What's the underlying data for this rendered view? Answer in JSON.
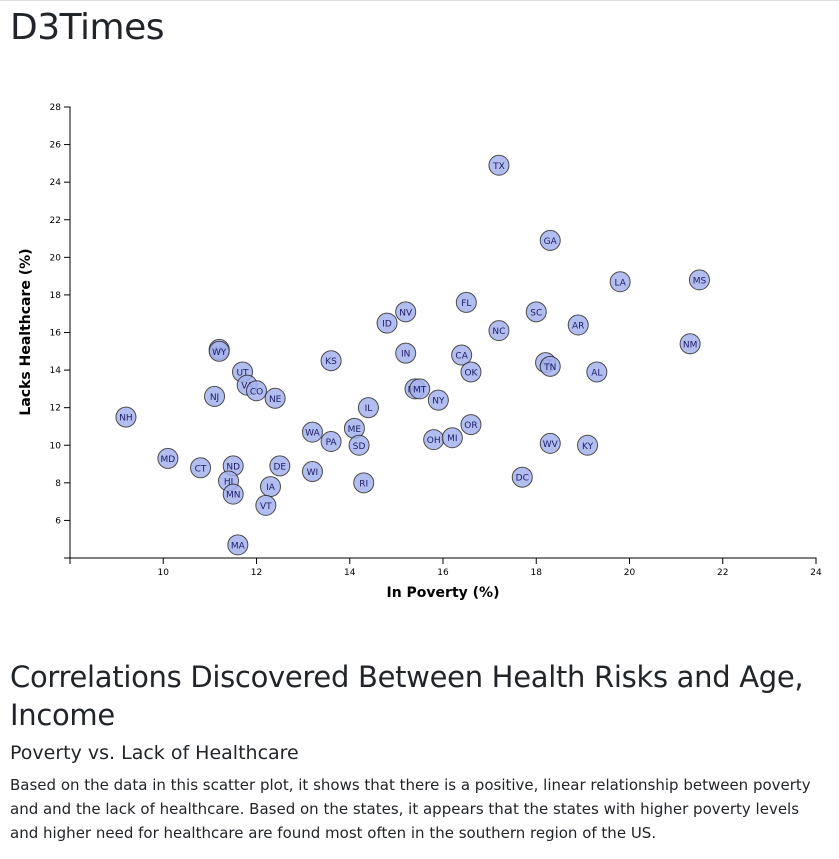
{
  "header": {
    "title": "D3Times"
  },
  "chart_data": {
    "type": "scatter",
    "xlabel": "In Poverty (%)",
    "ylabel": "Lacks Healthcare (%)",
    "xlim": [
      8,
      24
    ],
    "ylim": [
      4,
      28
    ],
    "xticks": [
      10,
      12,
      14,
      16,
      18,
      20,
      22,
      24
    ],
    "yticks": [
      6,
      8,
      10,
      12,
      14,
      16,
      18,
      20,
      22,
      24,
      26,
      28
    ],
    "points": [
      {
        "abbr": "TX",
        "x": 17.2,
        "y": 24.9
      },
      {
        "abbr": "GA",
        "x": 18.3,
        "y": 20.9
      },
      {
        "abbr": "LA",
        "x": 19.8,
        "y": 18.7
      },
      {
        "abbr": "MS",
        "x": 21.5,
        "y": 18.8
      },
      {
        "abbr": "FL",
        "x": 16.5,
        "y": 17.6
      },
      {
        "abbr": "SC",
        "x": 18.0,
        "y": 17.1
      },
      {
        "abbr": "NV",
        "x": 15.2,
        "y": 17.1
      },
      {
        "abbr": "ID",
        "x": 14.8,
        "y": 16.5
      },
      {
        "abbr": "AR",
        "x": 18.9,
        "y": 16.4
      },
      {
        "abbr": "NC",
        "x": 17.2,
        "y": 16.1
      },
      {
        "abbr": "NM",
        "x": 21.3,
        "y": 15.4
      },
      {
        "abbr": "AK",
        "x": 11.2,
        "y": 15.1
      },
      {
        "abbr": "WY",
        "x": 11.2,
        "y": 15.0
      },
      {
        "abbr": "IN",
        "x": 15.2,
        "y": 14.9
      },
      {
        "abbr": "CA",
        "x": 16.4,
        "y": 14.8
      },
      {
        "abbr": "KS",
        "x": 13.6,
        "y": 14.5
      },
      {
        "abbr": "AZ",
        "x": 18.2,
        "y": 14.4
      },
      {
        "abbr": "TN",
        "x": 18.3,
        "y": 14.2
      },
      {
        "abbr": "UT",
        "x": 11.7,
        "y": 13.9
      },
      {
        "abbr": "OK",
        "x": 16.6,
        "y": 13.9
      },
      {
        "abbr": "AL",
        "x": 19.3,
        "y": 13.9
      },
      {
        "abbr": "VA",
        "x": 11.8,
        "y": 13.2
      },
      {
        "abbr": "CO",
        "x": 12.0,
        "y": 12.9
      },
      {
        "abbr": "MO",
        "x": 15.4,
        "y": 13.0
      },
      {
        "abbr": "MT",
        "x": 15.5,
        "y": 13.0
      },
      {
        "abbr": "NJ",
        "x": 11.1,
        "y": 12.6
      },
      {
        "abbr": "NE",
        "x": 12.4,
        "y": 12.5
      },
      {
        "abbr": "NY",
        "x": 15.9,
        "y": 12.4
      },
      {
        "abbr": "IL",
        "x": 14.4,
        "y": 12.0
      },
      {
        "abbr": "NH",
        "x": 9.2,
        "y": 11.5
      },
      {
        "abbr": "OR",
        "x": 16.6,
        "y": 11.1
      },
      {
        "abbr": "ME",
        "x": 14.1,
        "y": 10.9
      },
      {
        "abbr": "WA",
        "x": 13.2,
        "y": 10.7
      },
      {
        "abbr": "OH",
        "x": 15.8,
        "y": 10.3
      },
      {
        "abbr": "MI",
        "x": 16.2,
        "y": 10.4
      },
      {
        "abbr": "PA",
        "x": 13.6,
        "y": 10.2
      },
      {
        "abbr": "WV",
        "x": 18.3,
        "y": 10.1
      },
      {
        "abbr": "KY",
        "x": 19.1,
        "y": 10.0
      },
      {
        "abbr": "SD",
        "x": 14.2,
        "y": 10.0
      },
      {
        "abbr": "MD",
        "x": 10.1,
        "y": 9.3
      },
      {
        "abbr": "CT",
        "x": 10.8,
        "y": 8.8
      },
      {
        "abbr": "ND",
        "x": 11.5,
        "y": 8.9
      },
      {
        "abbr": "DE",
        "x": 12.5,
        "y": 8.9
      },
      {
        "abbr": "WI",
        "x": 13.2,
        "y": 8.6
      },
      {
        "abbr": "DC",
        "x": 17.7,
        "y": 8.3
      },
      {
        "abbr": "HI",
        "x": 11.4,
        "y": 8.1
      },
      {
        "abbr": "RI",
        "x": 14.3,
        "y": 8.0
      },
      {
        "abbr": "IA",
        "x": 12.3,
        "y": 7.8
      },
      {
        "abbr": "MN",
        "x": 11.5,
        "y": 7.4
      },
      {
        "abbr": "VT",
        "x": 12.2,
        "y": 6.8
      },
      {
        "abbr": "MA",
        "x": 11.6,
        "y": 4.7
      }
    ]
  },
  "analysis": {
    "title": "Correlations Discovered Between Health Risks and Age, Income",
    "subtitle": "Poverty vs. Lack of Healthcare",
    "body": "Based on the data in this scatter plot, it shows that there is a positive, linear relationship between poverty and and the lack of healthcare. Based on the states, it appears that the states with higher poverty levels and higher need for healthcare are found most often in the southern region of the US."
  }
}
